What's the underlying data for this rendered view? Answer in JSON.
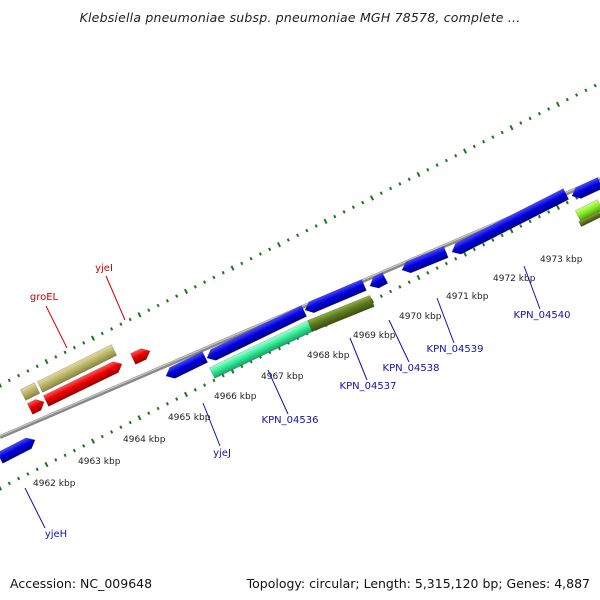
{
  "title": "Klebsiella pneumoniae subsp. pneumoniae MGH 78578, complete ...",
  "footer": {
    "accession": "Accession: NC_009648",
    "summary": "Topology: circular; Length: 5,315,120 bp; Genes: 4,887"
  },
  "kbp_labels": [
    "4962 kbp",
    "4963 kbp",
    "4964 kbp",
    "4965 kbp",
    "4966 kbp",
    "4967 kbp",
    "4968 kbp",
    "4969 kbp",
    "4970 kbp",
    "4971 kbp",
    "4972 kbp",
    "4973 kbp"
  ],
  "gene_labels": [
    {
      "name": "groEL",
      "strand": "upper"
    },
    {
      "name": "yjeI",
      "strand": "upper"
    },
    {
      "name": "yjeH",
      "strand": "lower"
    },
    {
      "name": "yjeJ",
      "strand": "lower"
    },
    {
      "name": "KPN_04536",
      "strand": "lower"
    },
    {
      "name": "KPN_04537",
      "strand": "lower"
    },
    {
      "name": "KPN_04538",
      "strand": "lower"
    },
    {
      "name": "KPN_04539",
      "strand": "lower"
    },
    {
      "name": "KPN_04540",
      "strand": "lower"
    }
  ],
  "colors": {
    "blue_gene": "#0000dd",
    "red_gene": "#ee0000",
    "khaki_gene": "#bdb76b",
    "aquamarine_gene": "#33ee99",
    "olive_gene": "#5e7a1e",
    "green_gene": "#88ee22",
    "upper_label": "#cc0000",
    "lower_label": "#1111aa",
    "tick": "#1a7a1a",
    "backbone": "#888888"
  }
}
